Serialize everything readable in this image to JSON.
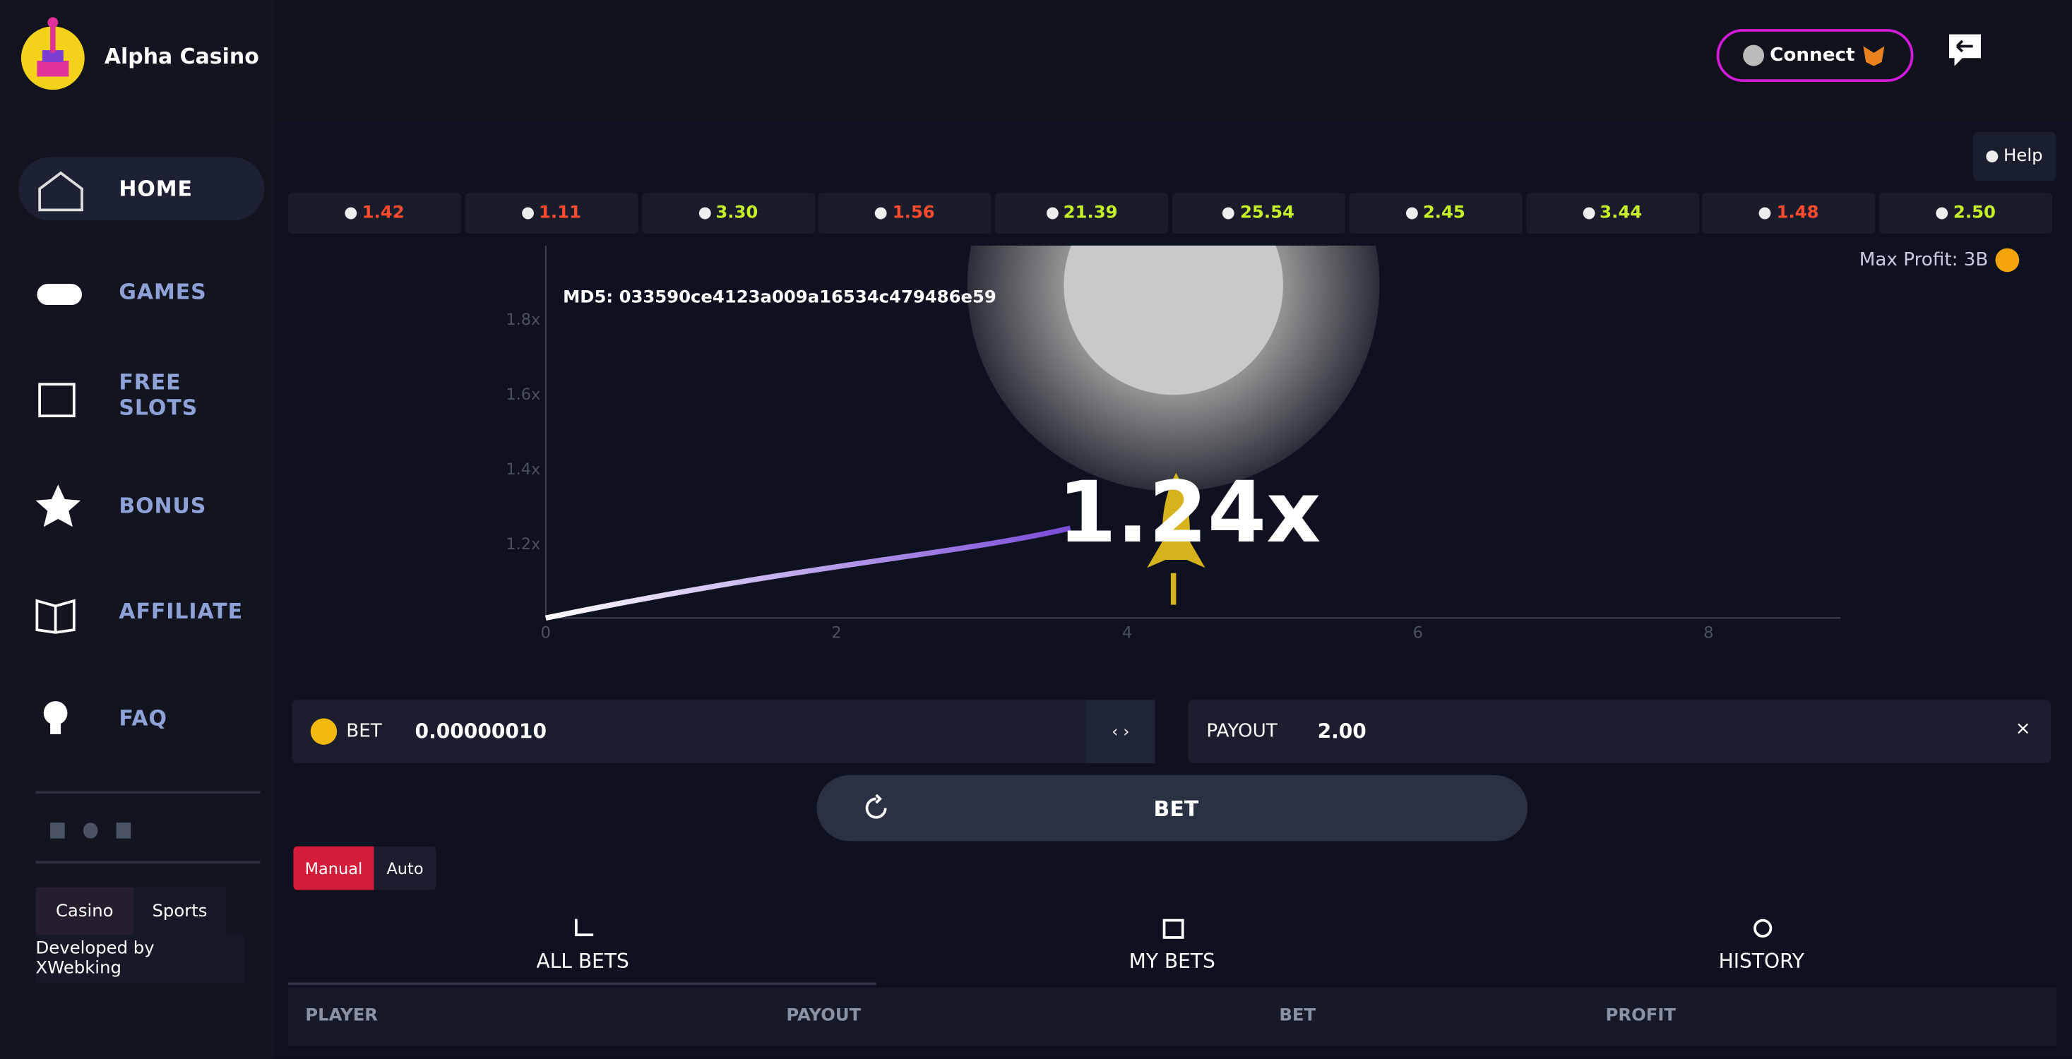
{
  "brand": "Alpha Casino",
  "connect": "Connect",
  "nav": [
    "HOME",
    "GAMES",
    "FREE SLOTS",
    "BONUS",
    "AFFILIATE",
    "FAQ"
  ],
  "site_tabs": [
    "Casino",
    "Sports"
  ],
  "developer": "Developed by XWebking",
  "help": "Help",
  "history": [
    {
      "value": "1.42",
      "color": "#ff4a2e"
    },
    {
      "value": "1.11",
      "color": "#ff4a2e"
    },
    {
      "value": "3.30",
      "color": "#c6f02a"
    },
    {
      "value": "1.56",
      "color": "#ff4a2e"
    },
    {
      "value": "21.39",
      "color": "#c6f02a"
    },
    {
      "value": "25.54",
      "color": "#c6f02a"
    },
    {
      "value": "2.45",
      "color": "#c6f02a"
    },
    {
      "value": "3.44",
      "color": "#c6f02a"
    },
    {
      "value": "1.48",
      "color": "#ff4a2e"
    },
    {
      "value": "2.50",
      "color": "#c6f02a"
    }
  ],
  "max_profit": "Max Profit: 3B",
  "graph": {
    "md5": "MD5: 033590ce4123a009a16534c479486e59",
    "multiplier": "1.24x",
    "x_ticks": [
      "0",
      "2",
      "4",
      "6",
      "8"
    ],
    "y_ticks": [
      "1.2x",
      "1.4x",
      "1.6x",
      "1.8x"
    ]
  },
  "bet": {
    "label": "BET",
    "amount": "0.00000010"
  },
  "payout": {
    "label": "PAYOUT",
    "value": "2.00"
  },
  "bet_button": "BET",
  "modes": [
    "Manual",
    "Auto"
  ],
  "bets_tabs": [
    "ALL BETS",
    "MY BETS",
    "HISTORY"
  ],
  "columns": [
    "PLAYER",
    "PAYOUT",
    "BET",
    "PROFIT"
  ]
}
